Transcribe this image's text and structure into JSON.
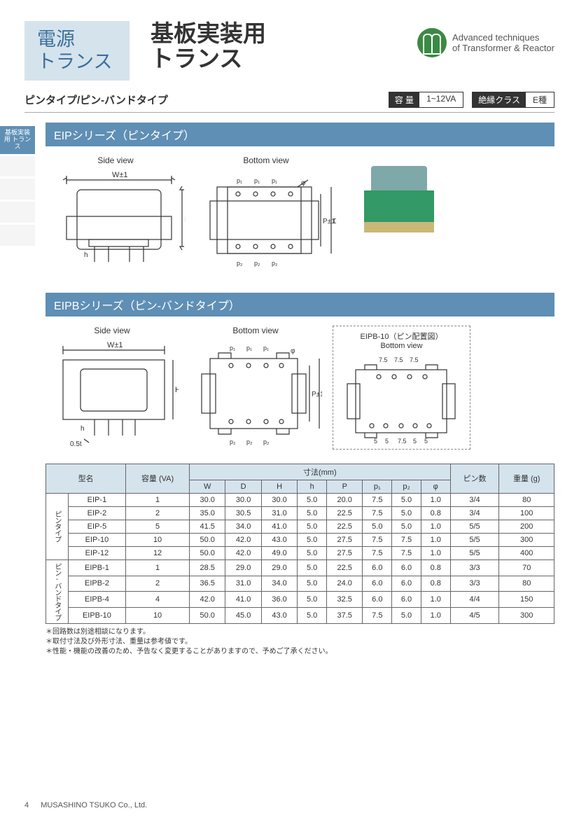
{
  "header": {
    "category1": "電源",
    "category2": "トランス",
    "title1": "基板実装用",
    "title2": "トランス",
    "logo_text1": "Advanced techniques",
    "logo_text2": "of Transformer & Reactor"
  },
  "subhead": {
    "subtitle": "ピンタイプ/ピン-バンドタイプ",
    "capacity_label": "容 量",
    "capacity_value": "1~12VA",
    "insulation_label": "絶縁クラス",
    "insulation_value": "E種"
  },
  "sidebar": {
    "active": "基板実装用\nトランス"
  },
  "section1": {
    "title": "EIPシリーズ（ピンタイプ）"
  },
  "section2": {
    "title": "EIPBシリーズ（ピン-バンドタイプ）"
  },
  "diagrams": {
    "side_view": "Side view",
    "bottom_view": "Bottom view",
    "w_label": "W±1",
    "h_label": "H±1",
    "d_label": "D±1",
    "p_label": "P±1",
    "h_small": "h",
    "phi": "φ",
    "p1": "p₁",
    "p2": "p₂",
    "thickness": "0.5t",
    "pinlayout_title": "EIPB-10（ピン配置図）",
    "pinlayout_sub": "Bottom view",
    "pin75": "7.5",
    "pin5": "5"
  },
  "table": {
    "headers": {
      "model": "型名",
      "capacity": "容量\n(VA)",
      "dimensions": "寸法(mm)",
      "pins": "ピン数",
      "weight": "重量\n(g)",
      "W": "W",
      "D": "D",
      "H": "H",
      "h": "h",
      "P": "P",
      "p1": "p₁",
      "p2": "p₂",
      "phi": "φ"
    },
    "group1_label": "ピンタイプ",
    "group2_label": "ピン-バンドタイプ",
    "rows": [
      {
        "m": "EIP-1",
        "va": "1",
        "W": "30.0",
        "D": "30.0",
        "H": "30.0",
        "h": "5.0",
        "P": "20.0",
        "p1": "7.5",
        "p2": "5.0",
        "phi": "1.0",
        "pins": "3/4",
        "wt": "80"
      },
      {
        "m": "EIP-2",
        "va": "2",
        "W": "35.0",
        "D": "30.5",
        "H": "31.0",
        "h": "5.0",
        "P": "22.5",
        "p1": "7.5",
        "p2": "5.0",
        "phi": "0.8",
        "pins": "3/4",
        "wt": "100"
      },
      {
        "m": "EIP-5",
        "va": "5",
        "W": "41.5",
        "D": "34.0",
        "H": "41.0",
        "h": "5.0",
        "P": "22.5",
        "p1": "5.0",
        "p2": "5.0",
        "phi": "1.0",
        "pins": "5/5",
        "wt": "200"
      },
      {
        "m": "EIP-10",
        "va": "10",
        "W": "50.0",
        "D": "42.0",
        "H": "43.0",
        "h": "5.0",
        "P": "27.5",
        "p1": "7.5",
        "p2": "7.5",
        "phi": "1.0",
        "pins": "5/5",
        "wt": "300"
      },
      {
        "m": "EIP-12",
        "va": "12",
        "W": "50.0",
        "D": "42.0",
        "H": "49.0",
        "h": "5.0",
        "P": "27.5",
        "p1": "7.5",
        "p2": "7.5",
        "phi": "1.0",
        "pins": "5/5",
        "wt": "400"
      },
      {
        "m": "EIPB-1",
        "va": "1",
        "W": "28.5",
        "D": "29.0",
        "H": "29.0",
        "h": "5.0",
        "P": "22.5",
        "p1": "6.0",
        "p2": "6.0",
        "phi": "0.8",
        "pins": "3/3",
        "wt": "70"
      },
      {
        "m": "EIPB-2",
        "va": "2",
        "W": "36.5",
        "D": "31.0",
        "H": "34.0",
        "h": "5.0",
        "P": "24.0",
        "p1": "6.0",
        "p2": "6.0",
        "phi": "0.8",
        "pins": "3/3",
        "wt": "80"
      },
      {
        "m": "EIPB-4",
        "va": "4",
        "W": "42.0",
        "D": "41.0",
        "H": "36.0",
        "h": "5.0",
        "P": "32.5",
        "p1": "6.0",
        "p2": "6.0",
        "phi": "1.0",
        "pins": "4/4",
        "wt": "150"
      },
      {
        "m": "EIPB-10",
        "va": "10",
        "W": "50.0",
        "D": "45.0",
        "H": "43.0",
        "h": "5.0",
        "P": "37.5",
        "p1": "7.5",
        "p2": "5.0",
        "phi": "1.0",
        "pins": "4/5",
        "wt": "300"
      }
    ]
  },
  "notes": {
    "n1": "＊回路数は別途相談になります。",
    "n2": "＊取付寸法及び外形寸法、重量は参考値です。",
    "n3": "＊性能・機能の改善のため、予告なく変更することがありますので、予めご了承ください。"
  },
  "footer": {
    "page": "4",
    "company": "MUSASHINO TSUKO Co., Ltd."
  }
}
